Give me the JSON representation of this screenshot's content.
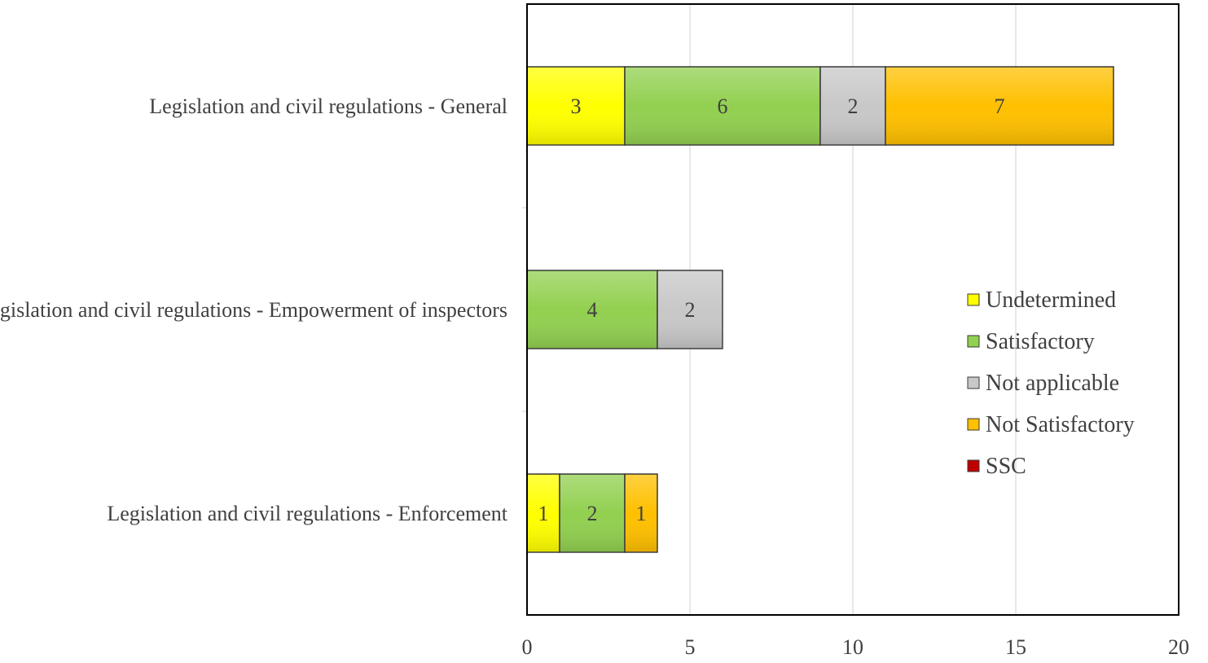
{
  "chart_data": {
    "type": "bar",
    "orientation": "horizontal",
    "stacked": true,
    "categories": [
      "Legislation and  civil regulations - General",
      "Legislation and  civil regulations - Empowerment of inspectors",
      "Legislation and  civil regulations - Enforcement"
    ],
    "series": [
      {
        "name": "Undetermined",
        "color": "#ffff00",
        "values": [
          3,
          0,
          1
        ]
      },
      {
        "name": "Satisfactory",
        "color": "#92d050",
        "values": [
          6,
          4,
          2
        ]
      },
      {
        "name": "Not applicable",
        "color": "#c8c8c8",
        "values": [
          2,
          2,
          0
        ]
      },
      {
        "name": "Not Satisfactory",
        "color": "#ffc000",
        "values": [
          7,
          0,
          1
        ]
      },
      {
        "name": "SSC",
        "color": "#c00000",
        "values": [
          0,
          0,
          0
        ]
      }
    ],
    "xlim": [
      0,
      20
    ],
    "xticks": [
      "0",
      "5",
      "10",
      "15",
      "20"
    ],
    "xlabel": "",
    "ylabel": "",
    "title": "",
    "grid": "vertical",
    "legend_position": "right"
  }
}
